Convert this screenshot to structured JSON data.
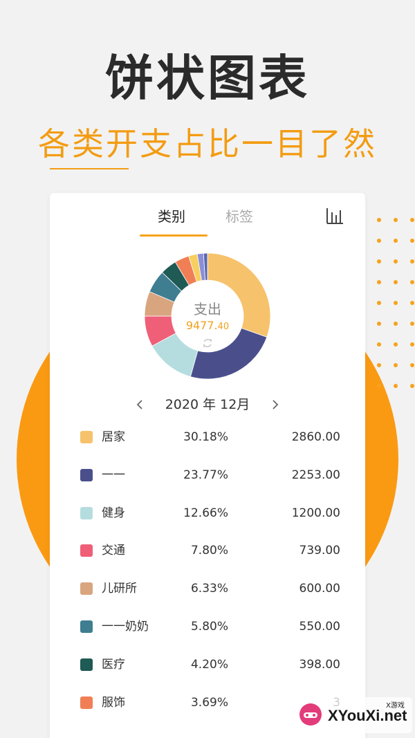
{
  "headline": "饼状图表",
  "subline": "各类开支占比一目了然",
  "tabs": [
    {
      "label": "类别",
      "active": true
    },
    {
      "label": "标签",
      "active": false
    }
  ],
  "chart": {
    "center_label": "支出",
    "total_main": "9477.",
    "total_decimal": "40",
    "month_label": "2020 年 12月"
  },
  "categories": [
    {
      "name": "居家",
      "percent": "30.18%",
      "amount": "2860.00",
      "color": "#f6c26b",
      "value": 30.18
    },
    {
      "name": "一一",
      "percent": "23.77%",
      "amount": "2253.00",
      "color": "#4a4f8c",
      "value": 23.77
    },
    {
      "name": "健身",
      "percent": "12.66%",
      "amount": "1200.00",
      "color": "#b5dde0",
      "value": 12.66
    },
    {
      "name": "交通",
      "percent": "7.80%",
      "amount": "739.00",
      "color": "#ef5f77",
      "value": 7.8
    },
    {
      "name": "儿研所",
      "percent": "6.33%",
      "amount": "600.00",
      "color": "#d9a57f",
      "value": 6.33
    },
    {
      "name": "一一奶奶",
      "percent": "5.80%",
      "amount": "550.00",
      "color": "#3f7d91",
      "value": 5.8
    },
    {
      "name": "医疗",
      "percent": "4.20%",
      "amount": "398.00",
      "color": "#1f5a55",
      "value": 4.2
    },
    {
      "name": "服饰",
      "percent": "3.69%",
      "amount": "3",
      "color": "#f17f55",
      "value": 3.69
    },
    {
      "name": "",
      "percent": "",
      "amount": "",
      "color": "#f7cf5f",
      "value": 2.2
    },
    {
      "name": "",
      "percent": "",
      "amount": "",
      "color": "#8c8fd6",
      "value": 1.6
    },
    {
      "name": "",
      "percent": "",
      "amount": "",
      "color": "#5b67b0",
      "value": 1.0
    }
  ],
  "watermark": {
    "text": "XYouXi.net",
    "small": "X游戏"
  },
  "colors": {
    "accent": "#f39c12",
    "circle": "#fa9a12"
  }
}
